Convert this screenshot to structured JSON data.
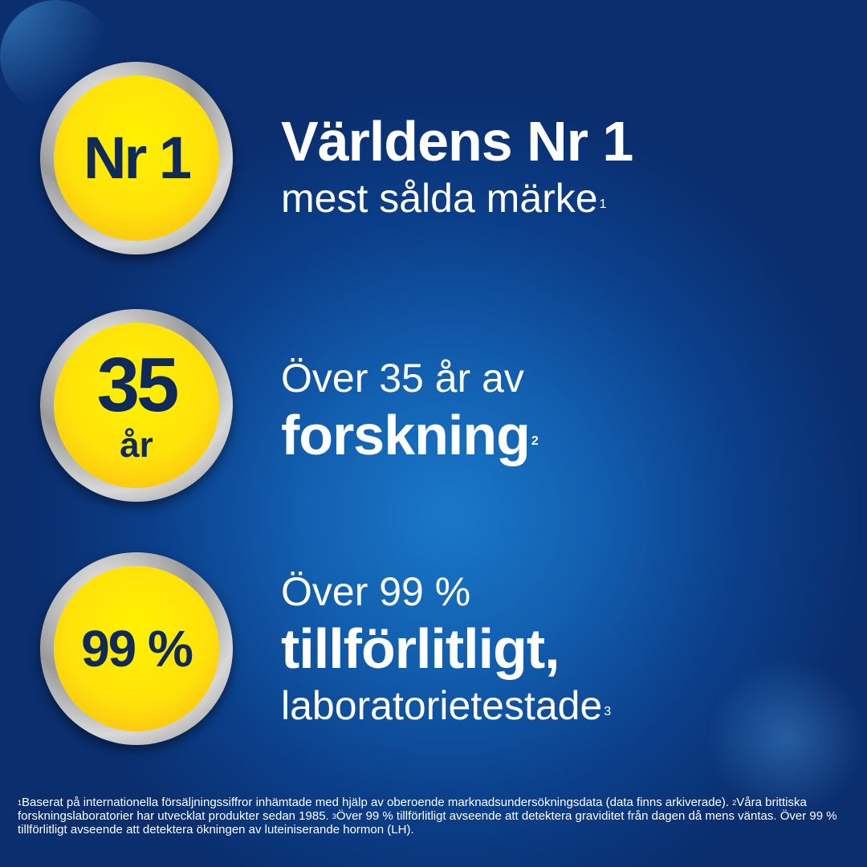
{
  "colors": {
    "background": "#0b3f8a",
    "badge_fill": "#ffe20a",
    "badge_text": "#0f2a5a",
    "text": "#ffffff"
  },
  "items": [
    {
      "badge": [
        "Nr 1"
      ],
      "line1": "Världens Nr 1",
      "line2": "mest sålda märke",
      "sup": "1"
    },
    {
      "badge": [
        "35",
        "år"
      ],
      "line1": "Över 35 år av",
      "line2": "forskning",
      "sup": "2"
    },
    {
      "badge": [
        "99 %"
      ],
      "line1": "Över 99 %",
      "line2": "tillförlitligt,",
      "line3": "laboratorietestade",
      "sup": "3"
    }
  ],
  "footnote": {
    "s1": "1",
    "t1": "Baserat på internationella försäljningssiffror inhämtade med hjälp av oberoende marknadsundersökningsdata (data finns arkiverade). ",
    "s2": "2",
    "t2": "Våra brittiska forskningslaboratorier har utvecklat produkter sedan 1985. ",
    "s3": "3",
    "t3": "Över 99 % tillförlitligt avseende att detektera graviditet från dagen då mens väntas. Över 99 % tillförlitligt avseende att detektera ökningen av luteiniserande hormon (LH)."
  }
}
